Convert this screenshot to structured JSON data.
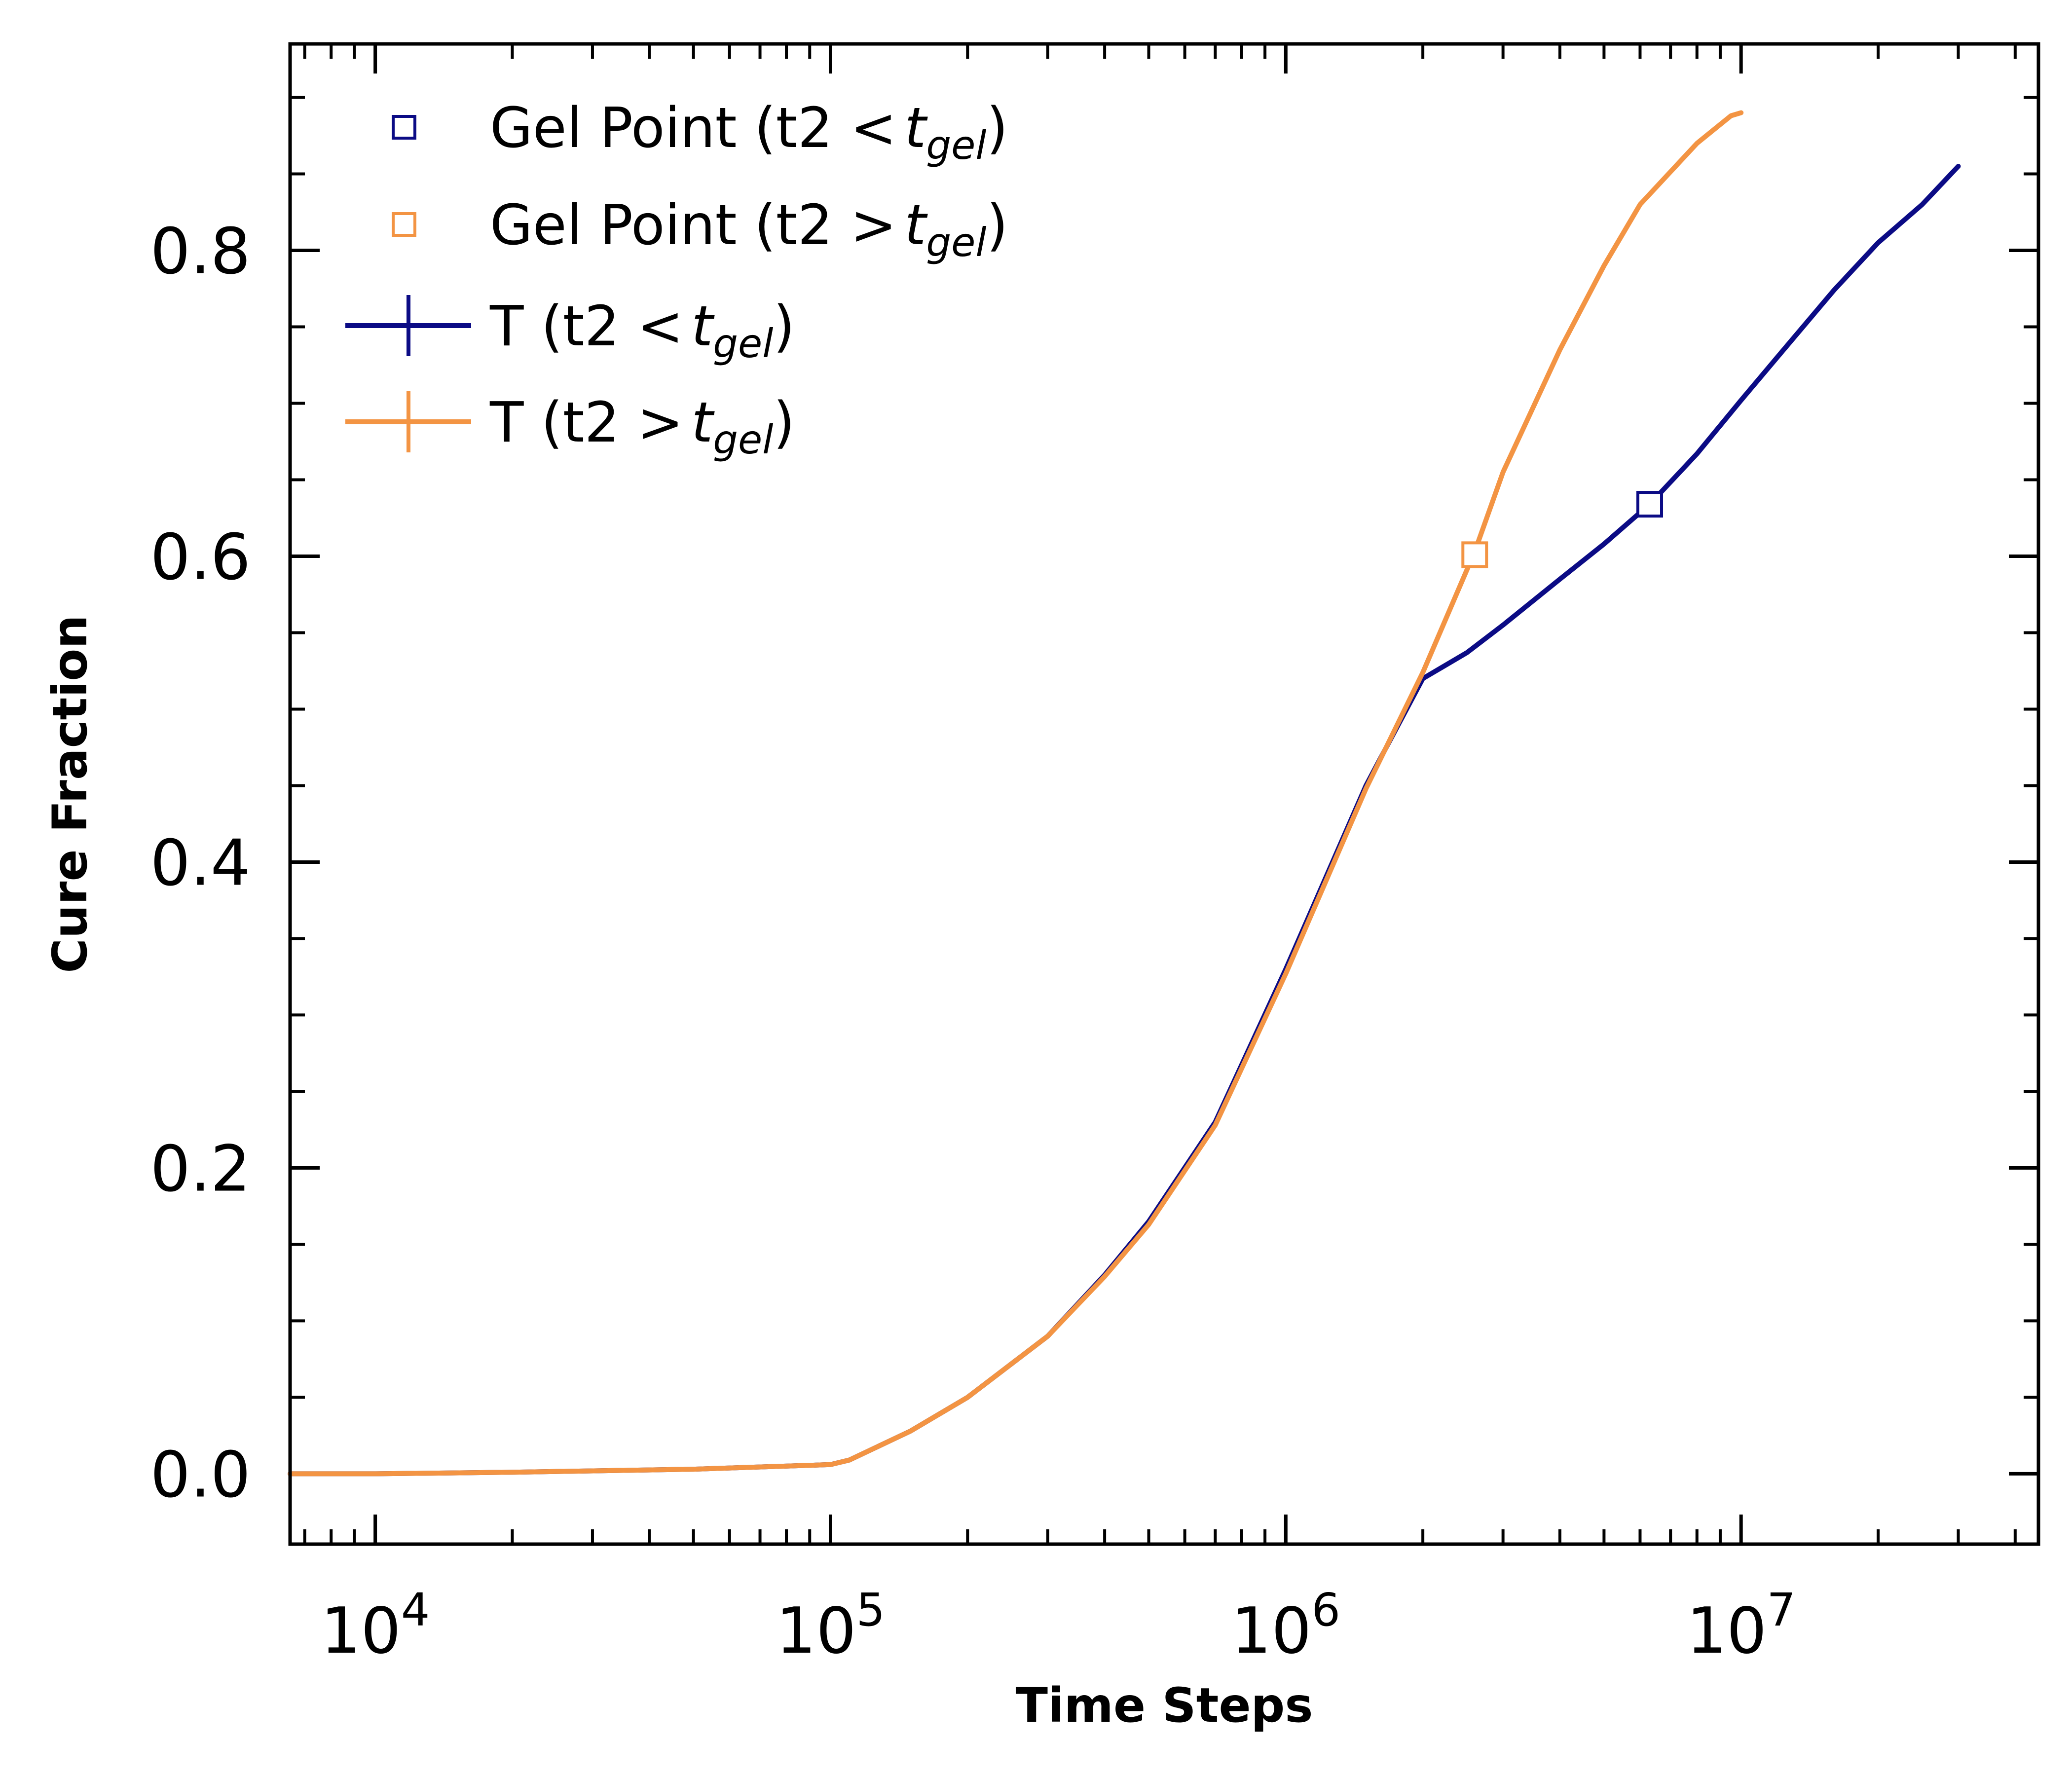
{
  "chart_data": {
    "type": "line",
    "title": "",
    "xlabel": "Time Steps",
    "ylabel": "Cure Fraction",
    "xscale": "log",
    "xlim": [
      6500,
      45000000
    ],
    "ylim": [
      -0.046,
      0.935
    ],
    "grid": false,
    "legend_position": "top-left",
    "x_ticks": [
      {
        "value": 10000,
        "base": "10",
        "exp": "4"
      },
      {
        "value": 100000,
        "base": "10",
        "exp": "5"
      },
      {
        "value": 1000000,
        "base": "10",
        "exp": "6"
      },
      {
        "value": 10000000,
        "base": "10",
        "exp": "7"
      }
    ],
    "y_ticks": [
      {
        "value": 0.0,
        "label": "0.0"
      },
      {
        "value": 0.2,
        "label": "0.2"
      },
      {
        "value": 0.4,
        "label": "0.4"
      },
      {
        "value": 0.6,
        "label": "0.6"
      },
      {
        "value": 0.8,
        "label": "0.8"
      }
    ],
    "series": [
      {
        "kind": "line",
        "color": "#0b0b85",
        "legend": {
          "prefix": "T (t2 ",
          "op": "<",
          "sym": "t",
          "sub": "gel",
          "suffix": ")"
        },
        "x": [
          6500,
          8000,
          10000,
          20000,
          50000,
          100000,
          110000,
          150000,
          200000,
          300000,
          400000,
          500000,
          700000,
          1000000,
          1500000,
          2000000,
          2500000,
          3000000,
          4000000,
          5000000,
          6300000,
          8000000,
          10000000,
          12000000,
          16000000,
          20000000,
          25000000,
          30000000
        ],
        "y": [
          0.0,
          0.0,
          0.0,
          0.001,
          0.003,
          0.006,
          0.009,
          0.028,
          0.05,
          0.09,
          0.13,
          0.165,
          0.23,
          0.33,
          0.45,
          0.52,
          0.537,
          0.555,
          0.585,
          0.608,
          0.634,
          0.667,
          0.702,
          0.73,
          0.774,
          0.805,
          0.83,
          0.855
        ]
      },
      {
        "kind": "line",
        "color": "#f39443",
        "legend": {
          "prefix": "T (t2 ",
          "op": ">",
          "sym": "t",
          "sub": "gel",
          "suffix": ")"
        },
        "x": [
          6500,
          8000,
          10000,
          20000,
          50000,
          100000,
          110000,
          150000,
          200000,
          300000,
          400000,
          500000,
          700000,
          1000000,
          1500000,
          2000000,
          2600000,
          3000000,
          4000000,
          5000000,
          6000000,
          8000000,
          9500000,
          10000000
        ],
        "y": [
          0.0,
          0.0,
          0.0,
          0.001,
          0.003,
          0.006,
          0.009,
          0.028,
          0.05,
          0.09,
          0.129,
          0.163,
          0.228,
          0.327,
          0.448,
          0.524,
          0.603,
          0.655,
          0.735,
          0.79,
          0.83,
          0.87,
          0.888,
          0.89
        ]
      },
      {
        "kind": "marker",
        "color": "#0b0b85",
        "legend": {
          "prefix": "Gel Point (t2 ",
          "op": "<",
          "sym": "t",
          "sub": "gel",
          "suffix": ")"
        },
        "x": [
          6300000
        ],
        "y": [
          0.634
        ]
      },
      {
        "kind": "marker",
        "color": "#f39443",
        "legend": {
          "prefix": "Gel Point (t2 ",
          "op": ">",
          "sym": "t",
          "sub": "gel",
          "suffix": ")"
        },
        "x": [
          2600000
        ],
        "y": [
          0.601
        ]
      }
    ]
  }
}
